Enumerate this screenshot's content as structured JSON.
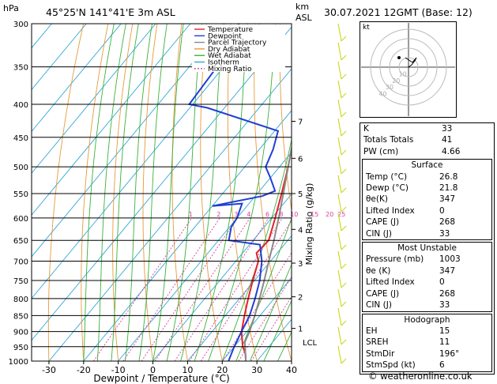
{
  "header": {
    "hpa_unit": "hPa",
    "location": "45°25'N  141°41'E  3m  ASL",
    "km_unit": "km",
    "asl_unit": "ASL",
    "datetime": "30.07.2021  12GMT  (Base: 12)"
  },
  "footer": {
    "credit": "© weatheronline.co.uk"
  },
  "colors": {
    "temperature": "#e8202a",
    "dewpoint": "#1f3fd8",
    "parcel": "#8a8a8a",
    "dry_adiabat": "#e89a3a",
    "wet_adiabat": "#3ab23a",
    "isotherm": "#2fa8d8",
    "mixing_ratio": "#d6409f",
    "wind_barb": "#c8d81a"
  },
  "chart_data": {
    "type": "line",
    "xlabel": "Dewpoint / Temperature (°C)",
    "ylabel_left": "hPa",
    "ylabel_right": "Mixing Ratio (g/kg)",
    "x_ticks": [
      -30,
      -20,
      -10,
      0,
      10,
      20,
      30,
      40
    ],
    "xlim": [
      -35,
      40
    ],
    "pressure_ticks": [
      300,
      350,
      400,
      450,
      500,
      550,
      600,
      650,
      700,
      750,
      800,
      850,
      900,
      950,
      1000
    ],
    "ylim": [
      1000,
      300
    ],
    "y_scale": "log",
    "skew": "skew-T",
    "grid": true,
    "legend_position": "top-left",
    "legend": [
      "Temperature",
      "Dewpoint",
      "Parcel Trajectory",
      "Dry Adiabat",
      "Wet Adiabat",
      "Isotherm",
      "Mixing Ratio"
    ],
    "km_ticks": [
      {
        "km": "1",
        "p": 890
      },
      {
        "km": "2",
        "p": 795
      },
      {
        "km": "3",
        "p": 705
      },
      {
        "km": "4",
        "p": 625
      },
      {
        "km": "5",
        "p": 550
      },
      {
        "km": "6",
        "p": 485
      },
      {
        "km": "7",
        "p": 425
      }
    ],
    "lcl_label": "LCL",
    "lcl_p": 935,
    "mixing_ratio_labels": [
      "1",
      "2",
      "3",
      "4",
      "6",
      "8",
      "10",
      "15",
      "20",
      "25"
    ],
    "mixing_ratio_values": [
      1,
      2,
      3,
      4,
      6,
      8,
      10,
      15,
      20,
      25
    ],
    "series": [
      {
        "name": "Temperature",
        "points": [
          [
            1000,
            26.8
          ],
          [
            975,
            25.0
          ],
          [
            950,
            22.5
          ],
          [
            925,
            20.5
          ],
          [
            900,
            18.5
          ],
          [
            850,
            15.5
          ],
          [
            800,
            12.5
          ],
          [
            750,
            9.5
          ],
          [
            700,
            6.5
          ],
          [
            680,
            4.0
          ],
          [
            650,
            4.5
          ],
          [
            600,
            1.0
          ],
          [
            550,
            -3.0
          ],
          [
            500,
            -7.5
          ],
          [
            450,
            -13.0
          ],
          [
            400,
            -19.5
          ],
          [
            350,
            -28.0
          ],
          [
            300,
            -37.5
          ]
        ]
      },
      {
        "name": "Dewpoint",
        "points": [
          [
            1000,
            21.8
          ],
          [
            950,
            20.0
          ],
          [
            900,
            18.5
          ],
          [
            850,
            17.0
          ],
          [
            800,
            14.5
          ],
          [
            750,
            11.5
          ],
          [
            700,
            7.5
          ],
          [
            660,
            3.0
          ],
          [
            650,
            -7.0
          ],
          [
            620,
            -9.5
          ],
          [
            600,
            -10.0
          ],
          [
            570,
            -12.0
          ],
          [
            575,
            -20.0
          ],
          [
            555,
            -8.0
          ],
          [
            545,
            -5.5
          ],
          [
            520,
            -10.0
          ],
          [
            500,
            -14.0
          ],
          [
            470,
            -16.0
          ],
          [
            440,
            -19.0
          ],
          [
            405,
            -45.0
          ],
          [
            400,
            -51.0
          ],
          [
            350,
            -52.0
          ],
          [
            300,
            -56.0
          ]
        ]
      },
      {
        "name": "Parcel Trajectory",
        "points": [
          [
            1000,
            26.8
          ],
          [
            935,
            22.0
          ],
          [
            900,
            20.8
          ],
          [
            850,
            18.5
          ],
          [
            800,
            15.8
          ],
          [
            750,
            12.8
          ],
          [
            700,
            9.5
          ],
          [
            650,
            6.0
          ],
          [
            600,
            2.0
          ],
          [
            550,
            -2.5
          ],
          [
            500,
            -7.5
          ],
          [
            450,
            -13.0
          ],
          [
            400,
            -19.5
          ],
          [
            370,
            -24.0
          ]
        ]
      }
    ]
  },
  "hodograph": {
    "label": "kt",
    "ring_labels": [
      "10",
      "20",
      "30",
      "40"
    ]
  },
  "indices": [
    {
      "label": "K",
      "value": "33"
    },
    {
      "label": "Totals Totals",
      "value": "41"
    },
    {
      "label": "PW (cm)",
      "value": "4.66"
    }
  ],
  "surface": {
    "title": "Surface",
    "rows": [
      {
        "label": "Temp (°C)",
        "value": "26.8"
      },
      {
        "label": "Dewp (°C)",
        "value": "21.8"
      },
      {
        "label": "θe(K)",
        "value": "347"
      },
      {
        "label": "Lifted Index",
        "value": "0"
      },
      {
        "label": "CAPE (J)",
        "value": "268"
      },
      {
        "label": "CIN (J)",
        "value": "33"
      }
    ]
  },
  "most_unstable": {
    "title": "Most Unstable",
    "rows": [
      {
        "label": "Pressure (mb)",
        "value": "1003"
      },
      {
        "label": "θe (K)",
        "value": "347"
      },
      {
        "label": "Lifted Index",
        "value": "0"
      },
      {
        "label": "CAPE (J)",
        "value": "268"
      },
      {
        "label": "CIN (J)",
        "value": "33"
      }
    ]
  },
  "hodograph_indices": {
    "title": "Hodograph",
    "rows": [
      {
        "label": "EH",
        "value": "15"
      },
      {
        "label": "SREH",
        "value": "11"
      },
      {
        "label": "StmDir",
        "value": "196°"
      },
      {
        "label": "StmSpd (kt)",
        "value": "6"
      }
    ]
  }
}
